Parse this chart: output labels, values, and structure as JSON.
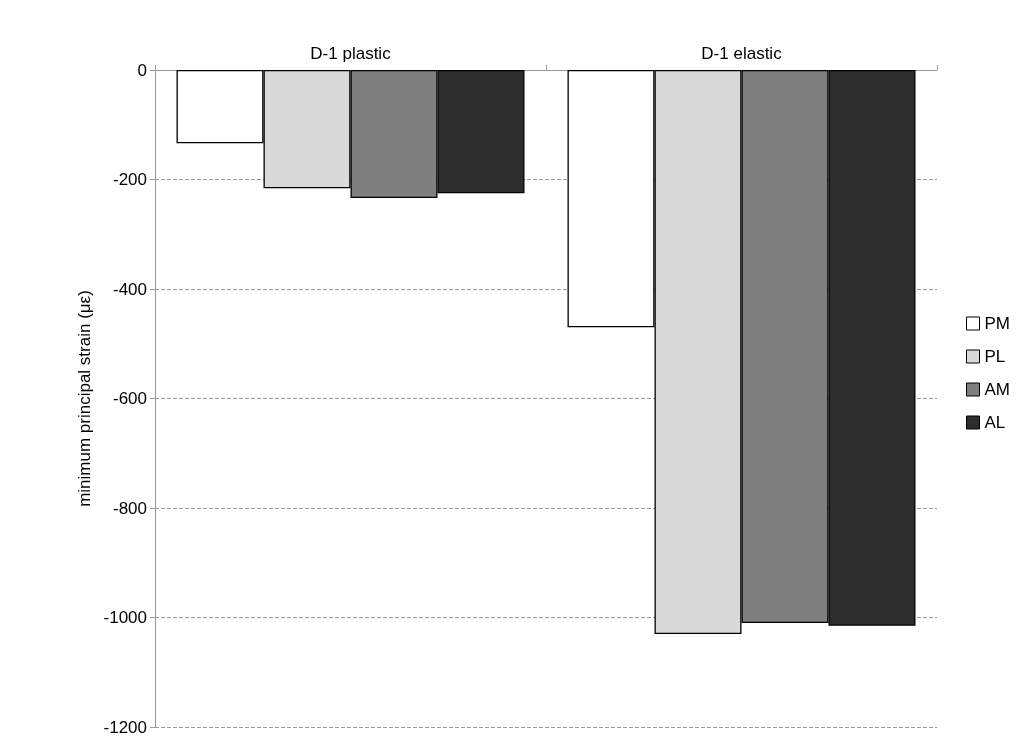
{
  "chart_data": {
    "type": "bar",
    "ylabel": "minimum principal strain (με)",
    "categories": [
      "D-1 plastic",
      "D-1 elastic"
    ],
    "series": [
      {
        "name": "PM",
        "color": "#ffffff",
        "values": [
          -134,
          -470
        ]
      },
      {
        "name": "PL",
        "color": "#d9d9d9",
        "values": [
          -216,
          -1030
        ]
      },
      {
        "name": "AM",
        "color": "#7f7f7f",
        "values": [
          -234,
          -1010
        ]
      },
      {
        "name": "AL",
        "color": "#2d2d2d",
        "values": [
          -225,
          -1015
        ]
      }
    ],
    "ylim": [
      -1200,
      0
    ],
    "yticks": [
      -1200,
      -1000,
      -800,
      -600,
      -400,
      -200,
      0
    ],
    "grid": "y",
    "legend": "right"
  }
}
